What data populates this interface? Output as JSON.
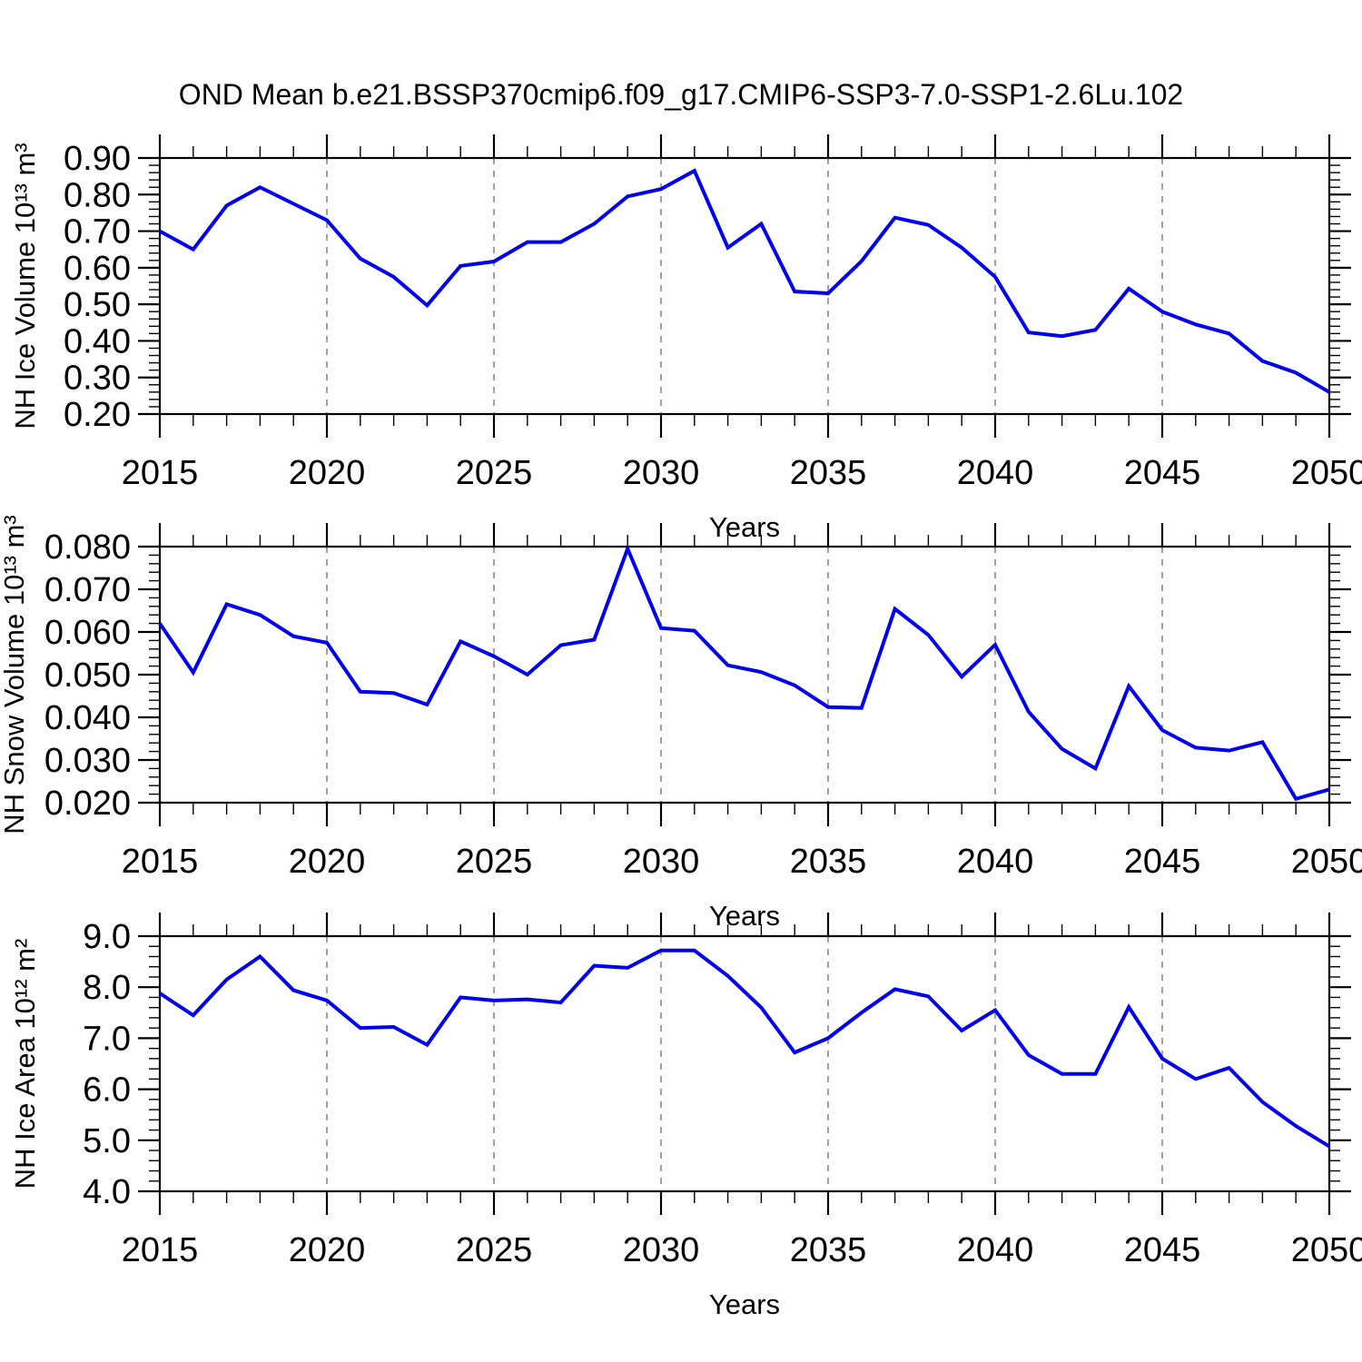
{
  "title": "OND Mean b.e21.BSSP370cmip6.f09_g17.CMIP6-SSP3-7.0-SSP1-2.6Lu.102",
  "chart_data": {
    "type": "line",
    "title": "OND Mean b.e21.BSSP370cmip6.f09_g17.CMIP6-SSP3-7.0-SSP1-2.6Lu.102",
    "x_label": "Years",
    "xlim": [
      2015,
      2050
    ],
    "series_color": "#0000ee",
    "grid_color": "#808080",
    "axis_color": "#000000",
    "grid_style": "dashed-vertical-at-major-x-ticks",
    "legend": "none",
    "years": [
      2015,
      2016,
      2017,
      2018,
      2019,
      2020,
      2021,
      2022,
      2023,
      2024,
      2025,
      2026,
      2027,
      2028,
      2029,
      2030,
      2031,
      2032,
      2033,
      2034,
      2035,
      2036,
      2037,
      2038,
      2039,
      2040,
      2041,
      2042,
      2043,
      2044,
      2045,
      2046,
      2047,
      2048,
      2049,
      2050
    ],
    "x_tick_labels": [
      "2015",
      "2020",
      "2025",
      "2030",
      "2035",
      "2040",
      "2045",
      "2050"
    ],
    "panels": [
      {
        "ylabel": "NH Ice Volume 10¹³ m³",
        "ylim": [
          0.2,
          0.9
        ],
        "y_major_step": 0.1,
        "y_minor_step": 0.02,
        "y_tick_labels": [
          "0.90",
          "0.80",
          "0.70",
          "0.60",
          "0.50",
          "0.40",
          "0.30",
          "0.20"
        ],
        "values": [
          0.7,
          0.65,
          0.77,
          0.82,
          0.775,
          0.73,
          0.625,
          0.575,
          0.497,
          0.605,
          0.617,
          0.67,
          0.67,
          0.72,
          0.795,
          0.815,
          0.865,
          0.655,
          0.72,
          0.535,
          0.53,
          0.618,
          0.737,
          0.717,
          0.655,
          0.575,
          0.423,
          0.413,
          0.43,
          0.543,
          0.48,
          0.445,
          0.42,
          0.345,
          0.313,
          0.26
        ]
      },
      {
        "ylabel": "NH Snow Volume 10¹³ m³",
        "ylim": [
          0.02,
          0.08
        ],
        "y_major_step": 0.01,
        "y_minor_step": 0.002,
        "y_tick_labels": [
          "0.080",
          "0.070",
          "0.060",
          "0.050",
          "0.040",
          "0.030",
          "0.020"
        ],
        "values": [
          0.062,
          0.0505,
          0.0665,
          0.064,
          0.059,
          0.0575,
          0.046,
          0.0457,
          0.043,
          0.0578,
          0.0543,
          0.05,
          0.0569,
          0.0582,
          0.0795,
          0.0609,
          0.0603,
          0.0522,
          0.0506,
          0.0475,
          0.0424,
          0.0422,
          0.0654,
          0.0593,
          0.0495,
          0.057,
          0.0413,
          0.0326,
          0.028,
          0.0473,
          0.037,
          0.0329,
          0.0322,
          0.0342,
          0.0209,
          0.0231
        ]
      },
      {
        "ylabel": "NH Ice Area 10¹² m²",
        "ylim": [
          4.0,
          9.0
        ],
        "y_major_step": 1.0,
        "y_minor_step": 0.2,
        "y_tick_labels": [
          "9.0",
          "8.0",
          "7.0",
          "6.0",
          "5.0",
          "4.0"
        ],
        "values": [
          7.88,
          7.45,
          8.15,
          8.6,
          7.94,
          7.74,
          7.2,
          7.22,
          6.87,
          7.8,
          7.74,
          7.76,
          7.7,
          8.42,
          8.38,
          8.72,
          8.72,
          8.22,
          7.6,
          6.72,
          7.0,
          7.5,
          7.96,
          7.82,
          7.15,
          7.55,
          6.67,
          6.3,
          6.3,
          7.61,
          6.6,
          6.2,
          6.42,
          5.75,
          5.28,
          4.88
        ]
      }
    ]
  }
}
